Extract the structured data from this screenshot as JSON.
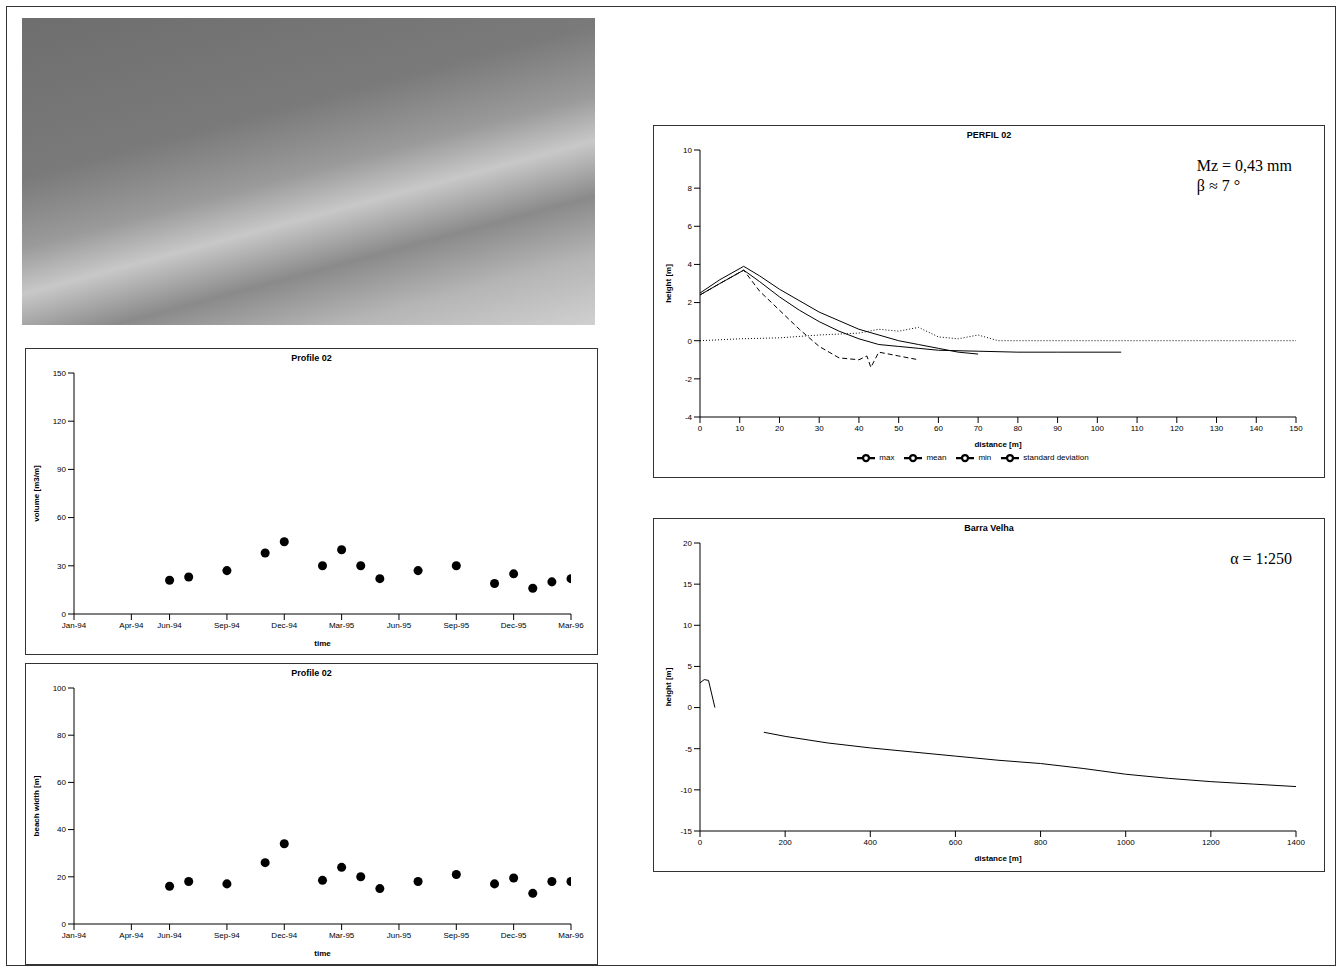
{
  "chart_data": [
    {
      "type": "scatter",
      "title": "Profile 02",
      "x_label": "time",
      "y_label": "volume [m3/m]",
      "x": [
        "1994-06",
        "1994-07",
        "1994-09",
        "1994-11",
        "1994-12",
        "1995-02",
        "1995-03",
        "1995-04",
        "1995-05",
        "1995-07",
        "1995-09",
        "1995-11",
        "1995-12",
        "1996-01",
        "1996-02",
        "1996-03"
      ],
      "values": [
        21,
        23,
        27,
        38,
        45,
        30,
        40,
        30,
        22,
        27,
        30,
        19,
        25,
        16,
        20,
        22
      ],
      "xlim": [
        "1994-01",
        "1996-03"
      ],
      "xticks": [
        {
          "value": "1994-01",
          "label": "Jan-94"
        },
        {
          "value": "1994-04",
          "label": "Apr-94"
        },
        {
          "value": "1994-06",
          "label": "Jun-94"
        },
        {
          "value": "1994-09",
          "label": "Sep-94"
        },
        {
          "value": "1994-12",
          "label": "Dec-94"
        },
        {
          "value": "1995-03",
          "label": "Mar-95"
        },
        {
          "value": "1995-06",
          "label": "Jun-95"
        },
        {
          "value": "1995-09",
          "label": "Sep-95"
        },
        {
          "value": "1995-12",
          "label": "Dec-95"
        },
        {
          "value": "1996-03",
          "label": "Mar-96"
        }
      ],
      "ylim": [
        0,
        150
      ],
      "yticks": [
        0,
        30,
        60,
        90,
        120,
        150
      ],
      "color": "#000000",
      "marker": "circle",
      "grid": false
    },
    {
      "type": "scatter",
      "title": "Profile 02",
      "x_label": "time",
      "y_label": "beach width [m]",
      "x": [
        "1994-06",
        "1994-07",
        "1994-09",
        "1994-11",
        "1994-12",
        "1995-02",
        "1995-03",
        "1995-04",
        "1995-05",
        "1995-07",
        "1995-09",
        "1995-11",
        "1995-12",
        "1996-01",
        "1996-02",
        "1996-03"
      ],
      "values": [
        16,
        18,
        17,
        26,
        34,
        18.5,
        24,
        20,
        15,
        18,
        21,
        17,
        19.5,
        13,
        18,
        18
      ],
      "xlim": [
        "1994-01",
        "1996-03"
      ],
      "xticks": [
        {
          "value": "1994-01",
          "label": "Jan-94"
        },
        {
          "value": "1994-04",
          "label": "Apr-94"
        },
        {
          "value": "1994-06",
          "label": "Jun-94"
        },
        {
          "value": "1994-09",
          "label": "Sep-94"
        },
        {
          "value": "1994-12",
          "label": "Dec-94"
        },
        {
          "value": "1995-03",
          "label": "Mar-95"
        },
        {
          "value": "1995-06",
          "label": "Jun-95"
        },
        {
          "value": "1995-09",
          "label": "Sep-95"
        },
        {
          "value": "1995-12",
          "label": "Dec-95"
        },
        {
          "value": "1996-03",
          "label": "Mar-96"
        }
      ],
      "ylim": [
        0,
        100
      ],
      "yticks": [
        0,
        20,
        40,
        60,
        80,
        100
      ],
      "color": "#000000",
      "marker": "circle",
      "grid": false
    },
    {
      "type": "line",
      "title": "PERFIL 02",
      "x_label": "distance [m]",
      "y_label": "height [m]",
      "annotations": [
        "Mz = 0,43 mm",
        "β ≈ 7 °"
      ],
      "xlim": [
        0,
        150
      ],
      "xticks": [
        0,
        10,
        20,
        30,
        40,
        50,
        60,
        70,
        80,
        90,
        100,
        110,
        120,
        130,
        140,
        150
      ],
      "ylim": [
        -4,
        10
      ],
      "yticks": [
        -4,
        -2,
        0,
        2,
        4,
        6,
        8,
        10
      ],
      "legend": "bottom",
      "grid": false,
      "series": [
        {
          "name": "mean",
          "color": "#000000",
          "line_style": "solid",
          "x": [
            0,
            5,
            11,
            15,
            20,
            25,
            30,
            35,
            40,
            45,
            50,
            55,
            60,
            70,
            80,
            90,
            106
          ],
          "values": [
            2.4,
            3.0,
            3.7,
            3.1,
            2.3,
            1.6,
            1.0,
            0.5,
            0.1,
            -0.2,
            -0.3,
            -0.4,
            -0.5,
            -0.55,
            -0.6,
            -0.6,
            -0.6
          ]
        },
        {
          "name": "standard deviation",
          "color": "#000000",
          "line_style": "dotted",
          "x": [
            0,
            10,
            20,
            30,
            40,
            45,
            50,
            55,
            60,
            65,
            70,
            75,
            80,
            100,
            150
          ],
          "values": [
            0.0,
            0.1,
            0.15,
            0.3,
            0.4,
            0.6,
            0.5,
            0.7,
            0.2,
            0.1,
            0.3,
            0.0,
            0.0,
            0.0,
            0.0
          ]
        },
        {
          "name": "min",
          "color": "#000000",
          "line_style": "dashed",
          "x": [
            0,
            5,
            11,
            15,
            20,
            25,
            30,
            35,
            40,
            42,
            43,
            45,
            50,
            55
          ],
          "values": [
            2.4,
            3.0,
            3.7,
            2.6,
            1.6,
            0.6,
            -0.3,
            -0.9,
            -1.0,
            -0.8,
            -1.4,
            -0.6,
            -0.8,
            -1.0
          ]
        },
        {
          "name": "max",
          "color": "#000000",
          "line_style": "solid",
          "x": [
            0,
            5,
            11,
            15,
            20,
            30,
            40,
            50,
            55,
            60,
            65,
            70
          ],
          "values": [
            2.5,
            3.2,
            3.9,
            3.4,
            2.7,
            1.5,
            0.6,
            0.0,
            -0.2,
            -0.4,
            -0.6,
            -0.7
          ]
        }
      ]
    },
    {
      "type": "line",
      "title": "Barra Velha",
      "x_label": "distance [m]",
      "y_label": "height [m]",
      "annotations": [
        "α = 1:250"
      ],
      "xlim": [
        0,
        1400
      ],
      "xticks": [
        0,
        200,
        400,
        600,
        800,
        1000,
        1200,
        1400
      ],
      "ylim": [
        -15,
        20
      ],
      "yticks": [
        -15,
        -10,
        -5,
        0,
        5,
        10,
        15,
        20
      ],
      "grid": false,
      "series": [
        {
          "color": "#000000",
          "line_style": "solid",
          "x": [
            0,
            10,
            20,
            35
          ],
          "values": [
            3.0,
            3.4,
            3.3,
            0
          ]
        },
        {
          "color": "#000000",
          "line_style": "solid",
          "x": [
            150,
            200,
            300,
            400,
            500,
            600,
            700,
            800,
            900,
            1000,
            1100,
            1200,
            1300,
            1400
          ],
          "values": [
            -3.0,
            -3.5,
            -4.3,
            -4.9,
            -5.4,
            -5.9,
            -6.4,
            -6.8,
            -7.4,
            -8.1,
            -8.6,
            -9.0,
            -9.3,
            -9.6
          ]
        }
      ]
    }
  ]
}
